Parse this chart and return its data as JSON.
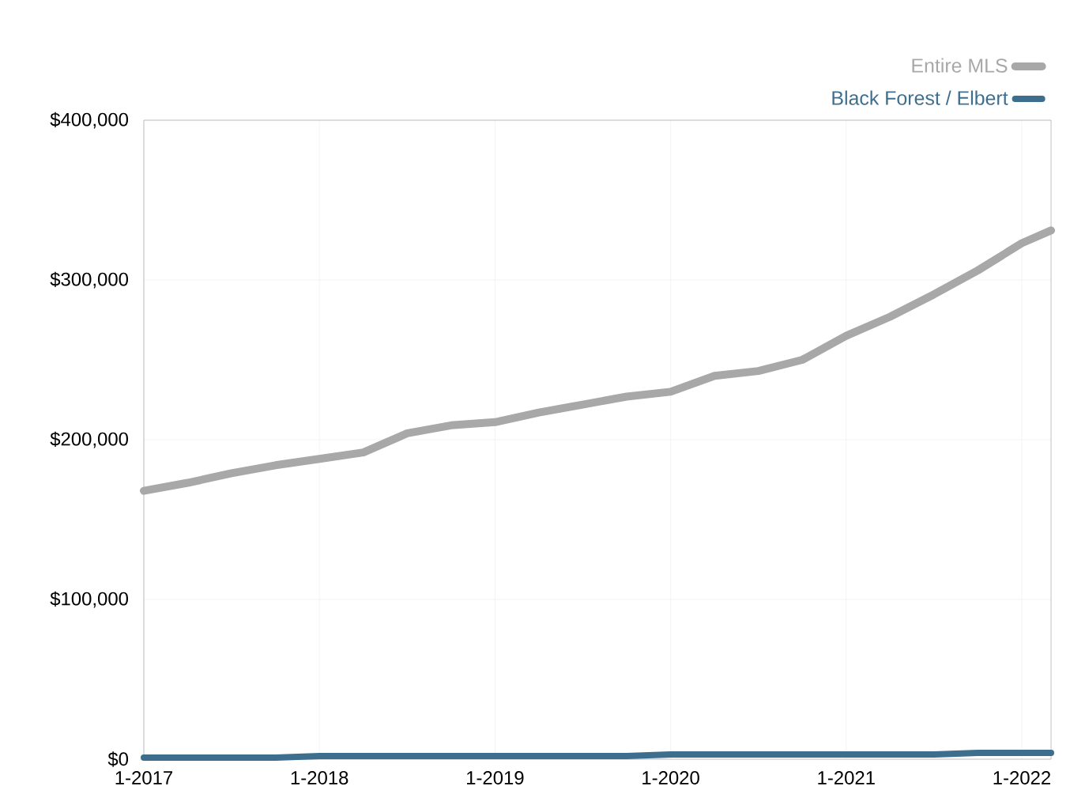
{
  "chart_data": {
    "type": "line",
    "xlim": [
      "2017-01",
      "2022-03"
    ],
    "ylim": [
      0,
      400000
    ],
    "xticks": [
      {
        "value": "2017-01",
        "label": "1-2017"
      },
      {
        "value": "2018-01",
        "label": "1-2018"
      },
      {
        "value": "2019-01",
        "label": "1-2019"
      },
      {
        "value": "2020-01",
        "label": "1-2020"
      },
      {
        "value": "2021-01",
        "label": "1-2021"
      },
      {
        "value": "2022-01",
        "label": "1-2022"
      }
    ],
    "yticks": [
      {
        "value": 0,
        "label": "$0"
      },
      {
        "value": 100000,
        "label": "$100,000"
      },
      {
        "value": 200000,
        "label": "$200,000"
      },
      {
        "value": 300000,
        "label": "$300,000"
      },
      {
        "value": 400000,
        "label": "$400,000"
      }
    ],
    "grid": true,
    "legend": "top right",
    "marker": "none",
    "line_style": "solid",
    "x": [
      "2017-01",
      "2017-04",
      "2017-07",
      "2017-10",
      "2018-01",
      "2018-04",
      "2018-07",
      "2018-10",
      "2019-01",
      "2019-04",
      "2019-07",
      "2019-10",
      "2020-01",
      "2020-04",
      "2020-07",
      "2020-10",
      "2021-01",
      "2021-04",
      "2021-07",
      "2021-10",
      "2022-01",
      "2022-03"
    ],
    "series": [
      {
        "name": "Entire MLS",
        "color": "#a8a8a8",
        "values": [
          168000,
          173000,
          179000,
          184000,
          188000,
          192000,
          204000,
          209000,
          211000,
          217000,
          222000,
          227000,
          230000,
          240000,
          243000,
          250000,
          265000,
          277000,
          291000,
          306000,
          323000,
          331000
        ]
      },
      {
        "name": "Black Forest / Elbert",
        "color": "#3e6e8e",
        "values": [
          1000,
          1000,
          1000,
          1000,
          2000,
          2000,
          2000,
          2000,
          2000,
          2000,
          2000,
          2000,
          3000,
          3000,
          3000,
          3000,
          3000,
          3000,
          3000,
          4000,
          4000,
          4000
        ]
      }
    ]
  }
}
